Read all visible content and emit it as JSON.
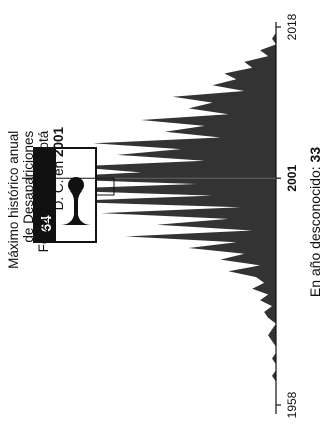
{
  "chart_data": {
    "type": "area",
    "orientation": "rotated-90-ccw",
    "x_start": 1958,
    "x_end": 2018,
    "x_ticks": [
      "1958",
      "2001",
      "2018"
    ],
    "peak": {
      "year": "2001",
      "value": "64"
    },
    "callout": {
      "line1": "Máximo histórico anual",
      "line2": "de Desapariciones",
      "line3": "Forzadas en Bogotá",
      "line4_prefix": "D. C. en ",
      "line4_year": "2001"
    },
    "unknown_year": {
      "label": "En año desconocido: ",
      "value": "33"
    },
    "fill_color": "#333333",
    "ylim": [
      0,
      64
    ],
    "values": [
      0,
      0,
      0,
      0,
      0,
      1,
      0,
      0,
      1,
      0,
      0,
      1,
      2,
      1,
      0,
      2,
      3,
      1,
      4,
      2,
      6,
      3,
      5,
      12,
      4,
      14,
      8,
      22,
      10,
      38,
      6,
      30,
      12,
      44,
      9,
      56,
      16,
      62,
      20,
      64,
      34,
      52,
      18,
      40,
      24,
      46,
      14,
      28,
      18,
      34,
      12,
      22,
      16,
      26,
      8,
      16,
      10,
      13,
      6,
      8,
      2,
      4,
      0,
      1,
      0,
      0
    ]
  }
}
